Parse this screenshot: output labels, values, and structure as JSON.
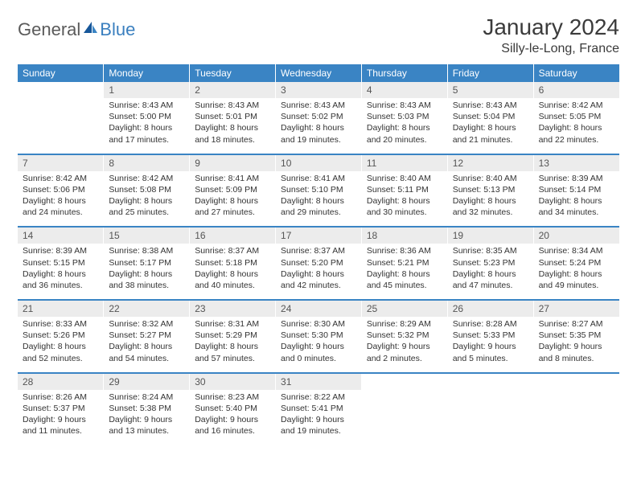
{
  "brand": {
    "part1": "General",
    "part2": "Blue"
  },
  "title": {
    "month": "January 2024",
    "location": "Silly-le-Long, France"
  },
  "colors": {
    "header_bg": "#3a84c4",
    "header_text": "#ffffff",
    "date_bg": "#ececec",
    "row_divider": "#3a84c4",
    "logo_gray": "#5a5a5a",
    "logo_blue": "#3a7fbf"
  },
  "day_names": [
    "Sunday",
    "Monday",
    "Tuesday",
    "Wednesday",
    "Thursday",
    "Friday",
    "Saturday"
  ],
  "weeks": [
    [
      {
        "date": "",
        "lines": [
          "",
          "",
          "",
          ""
        ]
      },
      {
        "date": "1",
        "lines": [
          "Sunrise: 8:43 AM",
          "Sunset: 5:00 PM",
          "Daylight: 8 hours",
          "and 17 minutes."
        ]
      },
      {
        "date": "2",
        "lines": [
          "Sunrise: 8:43 AM",
          "Sunset: 5:01 PM",
          "Daylight: 8 hours",
          "and 18 minutes."
        ]
      },
      {
        "date": "3",
        "lines": [
          "Sunrise: 8:43 AM",
          "Sunset: 5:02 PM",
          "Daylight: 8 hours",
          "and 19 minutes."
        ]
      },
      {
        "date": "4",
        "lines": [
          "Sunrise: 8:43 AM",
          "Sunset: 5:03 PM",
          "Daylight: 8 hours",
          "and 20 minutes."
        ]
      },
      {
        "date": "5",
        "lines": [
          "Sunrise: 8:43 AM",
          "Sunset: 5:04 PM",
          "Daylight: 8 hours",
          "and 21 minutes."
        ]
      },
      {
        "date": "6",
        "lines": [
          "Sunrise: 8:42 AM",
          "Sunset: 5:05 PM",
          "Daylight: 8 hours",
          "and 22 minutes."
        ]
      }
    ],
    [
      {
        "date": "7",
        "lines": [
          "Sunrise: 8:42 AM",
          "Sunset: 5:06 PM",
          "Daylight: 8 hours",
          "and 24 minutes."
        ]
      },
      {
        "date": "8",
        "lines": [
          "Sunrise: 8:42 AM",
          "Sunset: 5:08 PM",
          "Daylight: 8 hours",
          "and 25 minutes."
        ]
      },
      {
        "date": "9",
        "lines": [
          "Sunrise: 8:41 AM",
          "Sunset: 5:09 PM",
          "Daylight: 8 hours",
          "and 27 minutes."
        ]
      },
      {
        "date": "10",
        "lines": [
          "Sunrise: 8:41 AM",
          "Sunset: 5:10 PM",
          "Daylight: 8 hours",
          "and 29 minutes."
        ]
      },
      {
        "date": "11",
        "lines": [
          "Sunrise: 8:40 AM",
          "Sunset: 5:11 PM",
          "Daylight: 8 hours",
          "and 30 minutes."
        ]
      },
      {
        "date": "12",
        "lines": [
          "Sunrise: 8:40 AM",
          "Sunset: 5:13 PM",
          "Daylight: 8 hours",
          "and 32 minutes."
        ]
      },
      {
        "date": "13",
        "lines": [
          "Sunrise: 8:39 AM",
          "Sunset: 5:14 PM",
          "Daylight: 8 hours",
          "and 34 minutes."
        ]
      }
    ],
    [
      {
        "date": "14",
        "lines": [
          "Sunrise: 8:39 AM",
          "Sunset: 5:15 PM",
          "Daylight: 8 hours",
          "and 36 minutes."
        ]
      },
      {
        "date": "15",
        "lines": [
          "Sunrise: 8:38 AM",
          "Sunset: 5:17 PM",
          "Daylight: 8 hours",
          "and 38 minutes."
        ]
      },
      {
        "date": "16",
        "lines": [
          "Sunrise: 8:37 AM",
          "Sunset: 5:18 PM",
          "Daylight: 8 hours",
          "and 40 minutes."
        ]
      },
      {
        "date": "17",
        "lines": [
          "Sunrise: 8:37 AM",
          "Sunset: 5:20 PM",
          "Daylight: 8 hours",
          "and 42 minutes."
        ]
      },
      {
        "date": "18",
        "lines": [
          "Sunrise: 8:36 AM",
          "Sunset: 5:21 PM",
          "Daylight: 8 hours",
          "and 45 minutes."
        ]
      },
      {
        "date": "19",
        "lines": [
          "Sunrise: 8:35 AM",
          "Sunset: 5:23 PM",
          "Daylight: 8 hours",
          "and 47 minutes."
        ]
      },
      {
        "date": "20",
        "lines": [
          "Sunrise: 8:34 AM",
          "Sunset: 5:24 PM",
          "Daylight: 8 hours",
          "and 49 minutes."
        ]
      }
    ],
    [
      {
        "date": "21",
        "lines": [
          "Sunrise: 8:33 AM",
          "Sunset: 5:26 PM",
          "Daylight: 8 hours",
          "and 52 minutes."
        ]
      },
      {
        "date": "22",
        "lines": [
          "Sunrise: 8:32 AM",
          "Sunset: 5:27 PM",
          "Daylight: 8 hours",
          "and 54 minutes."
        ]
      },
      {
        "date": "23",
        "lines": [
          "Sunrise: 8:31 AM",
          "Sunset: 5:29 PM",
          "Daylight: 8 hours",
          "and 57 minutes."
        ]
      },
      {
        "date": "24",
        "lines": [
          "Sunrise: 8:30 AM",
          "Sunset: 5:30 PM",
          "Daylight: 9 hours",
          "and 0 minutes."
        ]
      },
      {
        "date": "25",
        "lines": [
          "Sunrise: 8:29 AM",
          "Sunset: 5:32 PM",
          "Daylight: 9 hours",
          "and 2 minutes."
        ]
      },
      {
        "date": "26",
        "lines": [
          "Sunrise: 8:28 AM",
          "Sunset: 5:33 PM",
          "Daylight: 9 hours",
          "and 5 minutes."
        ]
      },
      {
        "date": "27",
        "lines": [
          "Sunrise: 8:27 AM",
          "Sunset: 5:35 PM",
          "Daylight: 9 hours",
          "and 8 minutes."
        ]
      }
    ],
    [
      {
        "date": "28",
        "lines": [
          "Sunrise: 8:26 AM",
          "Sunset: 5:37 PM",
          "Daylight: 9 hours",
          "and 11 minutes."
        ]
      },
      {
        "date": "29",
        "lines": [
          "Sunrise: 8:24 AM",
          "Sunset: 5:38 PM",
          "Daylight: 9 hours",
          "and 13 minutes."
        ]
      },
      {
        "date": "30",
        "lines": [
          "Sunrise: 8:23 AM",
          "Sunset: 5:40 PM",
          "Daylight: 9 hours",
          "and 16 minutes."
        ]
      },
      {
        "date": "31",
        "lines": [
          "Sunrise: 8:22 AM",
          "Sunset: 5:41 PM",
          "Daylight: 9 hours",
          "and 19 minutes."
        ]
      },
      {
        "date": "",
        "lines": [
          "",
          "",
          "",
          ""
        ]
      },
      {
        "date": "",
        "lines": [
          "",
          "",
          "",
          ""
        ]
      },
      {
        "date": "",
        "lines": [
          "",
          "",
          "",
          ""
        ]
      }
    ]
  ]
}
